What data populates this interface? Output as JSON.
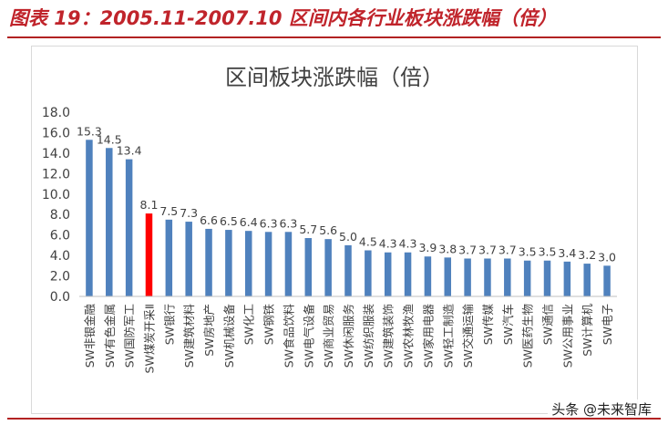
{
  "header": {
    "title": "图表 19：2005.11-2007.10 区间内各行业板块涨跌幅（倍）"
  },
  "watermark": "头条 @未来智库",
  "colors": {
    "bar": "#4f81bd",
    "highlight": "#ff0000",
    "rule": "#b22222"
  },
  "chart_data": {
    "type": "bar",
    "title": "区间板块涨跌幅（倍）",
    "xlabel": "",
    "ylabel": "",
    "ylim": [
      0,
      18
    ],
    "yticks": [
      "0.0",
      "2.0",
      "4.0",
      "6.0",
      "8.0",
      "10.0",
      "12.0",
      "14.0",
      "16.0",
      "18.0"
    ],
    "grid": false,
    "legend": "none",
    "categories": [
      "SW非银金融",
      "SW有色金属",
      "SW国防军工",
      "SW煤炭开采Ⅱ",
      "SW银行",
      "SW建筑材料",
      "SW房地产",
      "SW机械设备",
      "SW化工",
      "SW钢铁",
      "SW食品饮料",
      "SW电气设备",
      "SW商业贸易",
      "SW休闲服务",
      "SW纺织服装",
      "SW建筑装饰",
      "SW农林牧渔",
      "SW家用电器",
      "SW轻工制造",
      "SW交通运输",
      "SW传媒",
      "SW汽车",
      "SW医药生物",
      "SW通信",
      "SW公用事业",
      "SW计算机",
      "SW电子"
    ],
    "values": [
      15.3,
      14.5,
      13.4,
      8.1,
      7.5,
      7.3,
      6.6,
      6.5,
      6.4,
      6.3,
      6.3,
      5.7,
      5.6,
      5.0,
      4.5,
      4.3,
      4.3,
      3.9,
      3.8,
      3.7,
      3.7,
      3.7,
      3.5,
      3.5,
      3.4,
      3.2,
      3.0
    ],
    "data_labels": [
      "15.3",
      "14.5",
      "13.4",
      "8.1",
      "7.5",
      "7.3",
      "6.6",
      "6.5",
      "6.4",
      "6.3",
      "6.3",
      "5.7",
      "5.6",
      "5.0",
      "4.5",
      "4.3",
      "4.3",
      "3.9",
      "3.8",
      "3.7",
      "3.7",
      "3.7",
      "3.5",
      "3.5",
      "3.4",
      "3.2",
      "3.0"
    ],
    "highlight_index": 3
  }
}
